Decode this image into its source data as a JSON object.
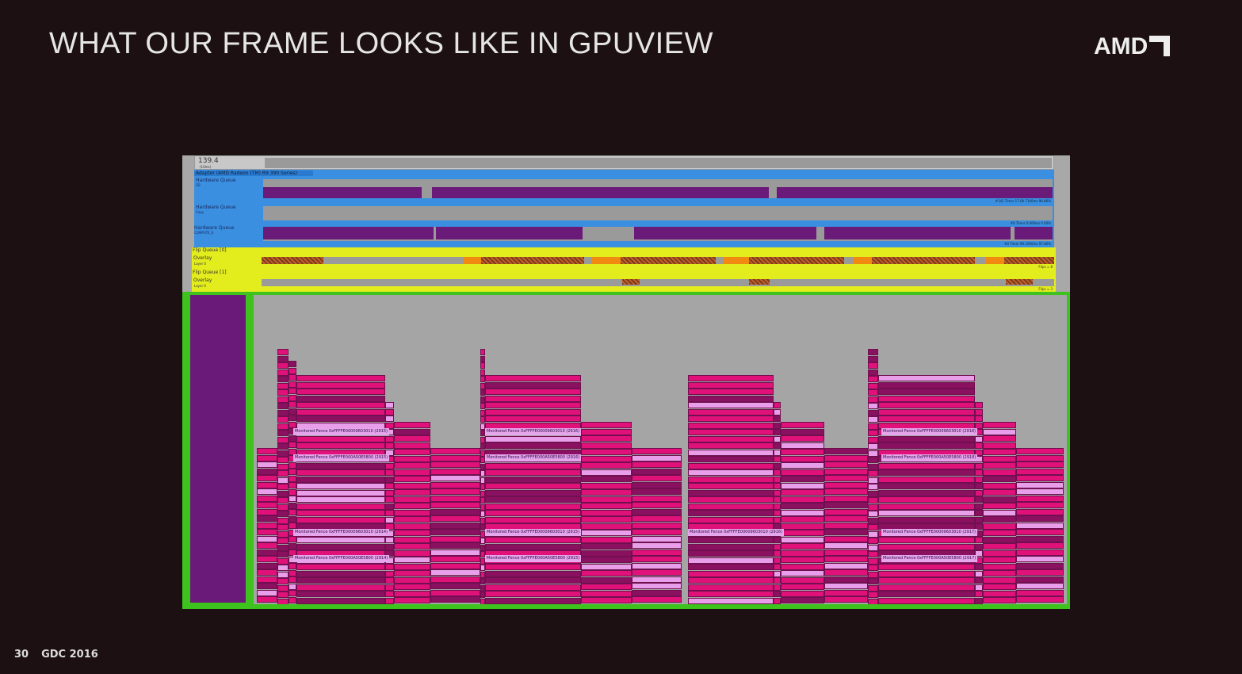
{
  "slide": {
    "title": "WHAT OUR FRAME LOOKS LIKE IN GPUVIEW",
    "logo": "AMD",
    "page_number": "30",
    "event": "GDC 2016"
  },
  "gpuview": {
    "ruler": {
      "value": "139.4",
      "unit": "(10ms)"
    },
    "adapter": "Adapter (AMD Radeon (TM) R9 390 Series)",
    "queues": [
      {
        "label": "Hardware Queue",
        "sub": "3D",
        "status": "#141 Timer 17.00 7100ms 96.86%"
      },
      {
        "label": "Hardware Queue",
        "sub": "Copy",
        "status": "#0 Timer 0.000ms 0.00%"
      },
      {
        "label": "Hardware Queue",
        "sub": "COMPUTE_0",
        "status": "#0 Timer 96.1000ms 97.80%"
      }
    ],
    "flip_queues": [
      {
        "label": "Flip Queue [0]",
        "overlay": "Overlay",
        "layer": "Layer 0",
        "status": "Flips = 8"
      },
      {
        "label": "Flip Queue [1]",
        "overlay": "Overlay",
        "layer": "Layer 0",
        "status": "Flips = 3"
      }
    ],
    "fences": [
      "Monitored Fence 0xFFFFE00009603010 (2915)",
      "Monitored Fence 0xFFFFE000A50E5800 (2915)",
      "Monitored Fence 0xFFFFE00009603010 (2916)",
      "Monitored Fence 0xFFFFE000A50E5800 (2916)",
      "Monitored Fence 0xFFFFE00009603010 (2914)",
      "Monitored Fence 0xFFFFE000A50E5800 (2914)",
      "Monitored Fence 0xFFFFE00009603010 (2915)",
      "Monitored Fence 0xFFFFE000A50E5800 (2915)",
      "Monitored Fence 0xFFFFE00009603010 (2916)",
      "Monitored Fence 0xFFFFE00009603010 (2918)",
      "Monitored Fence 0xFFFFE000A50E5800 (2918)",
      "Monitored Fence 0xFFFFE00009603010 (2917)",
      "Monitored Fence 0xFFFFE000A50E5800 (2917)"
    ],
    "colors": {
      "queue_bg": "#3a8fe0",
      "flip_bg": "#e3ec1c",
      "packet": "#e0127a",
      "packet_dark": "#8a1060",
      "packet_light": "#e89ee8",
      "frame": "#3ec21e"
    }
  }
}
